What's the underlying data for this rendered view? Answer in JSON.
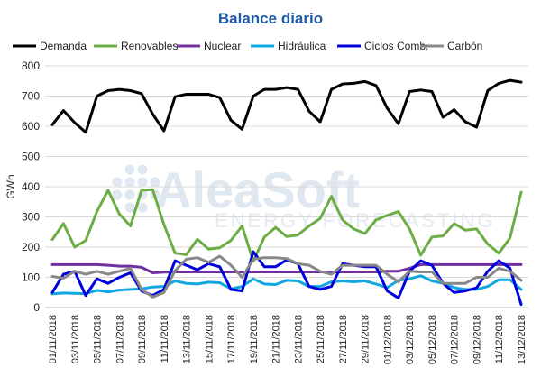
{
  "chart_data": {
    "type": "line",
    "title": "Balance diario",
    "ylabel": "GWh",
    "xlabel": "",
    "ylim": [
      0,
      800
    ],
    "yticks": [
      0,
      100,
      200,
      300,
      400,
      500,
      600,
      700,
      800
    ],
    "grid": true,
    "legend_position": "top",
    "watermark": {
      "line1": "AleaSoft",
      "line2": "ENERGY FORECASTING"
    },
    "x": [
      "01/11/2018",
      "02/11/2018",
      "03/11/2018",
      "04/11/2018",
      "05/11/2018",
      "06/11/2018",
      "07/11/2018",
      "08/11/2018",
      "09/11/2018",
      "10/11/2018",
      "11/11/2018",
      "12/11/2018",
      "13/11/2018",
      "14/11/2018",
      "15/11/2018",
      "16/11/2018",
      "17/11/2018",
      "18/11/2018",
      "19/11/2018",
      "20/11/2018",
      "21/11/2018",
      "22/11/2018",
      "23/11/2018",
      "24/11/2018",
      "25/11/2018",
      "26/11/2018",
      "27/11/2018",
      "28/11/2018",
      "29/11/2018",
      "30/11/2018",
      "01/12/2018",
      "02/12/2018",
      "03/12/2018",
      "04/12/2018",
      "05/12/2018",
      "06/12/2018",
      "07/12/2018",
      "08/12/2018",
      "09/12/2018",
      "10/12/2018",
      "11/12/2018",
      "12/12/2018",
      "13/12/2018"
    ],
    "xtick_labels": [
      "01/11/2018",
      "03/11/2018",
      "05/11/2018",
      "07/11/2018",
      "09/11/2018",
      "11/11/2018",
      "13/11/2018",
      "15/11/2018",
      "17/11/2018",
      "19/11/2018",
      "21/11/2018",
      "23/11/2018",
      "25/11/2018",
      "27/11/2018",
      "29/11/2018",
      "01/12/2018",
      "03/12/2018",
      "05/12/2018",
      "07/12/2018",
      "09/12/2018",
      "11/12/2018",
      "13/12/2018"
    ],
    "series": [
      {
        "name": "Demanda",
        "color": "#000000",
        "values": [
          605,
          652,
          612,
          580,
          700,
          718,
          722,
          718,
          708,
          640,
          585,
          698,
          706,
          706,
          706,
          695,
          620,
          590,
          700,
          722,
          722,
          728,
          722,
          650,
          615,
          722,
          740,
          742,
          748,
          735,
          660,
          608,
          715,
          720,
          715,
          630,
          655,
          615,
          597,
          718,
          742,
          752,
          746
        ]
      },
      {
        "name": "Renovables",
        "color": "#6cad45",
        "values": [
          225,
          278,
          200,
          222,
          318,
          388,
          310,
          270,
          388,
          390,
          275,
          180,
          175,
          226,
          193,
          198,
          222,
          270,
          153,
          233,
          265,
          235,
          240,
          270,
          295,
          368,
          290,
          260,
          245,
          290,
          305,
          318,
          260,
          173,
          233,
          237,
          278,
          256,
          260,
          210,
          180,
          230,
          382
        ]
      },
      {
        "name": "Nuclear",
        "color": "#7030a0",
        "values": [
          142,
          142,
          142,
          142,
          142,
          140,
          137,
          137,
          133,
          115,
          117,
          118,
          118,
          118,
          118,
          118,
          118,
          118,
          118,
          118,
          118,
          118,
          118,
          118,
          118,
          118,
          118,
          118,
          118,
          118,
          120,
          120,
          130,
          142,
          142,
          142,
          142,
          142,
          142,
          142,
          142,
          142,
          142
        ]
      },
      {
        "name": "Hidráulica",
        "color": "#12a7e0",
        "values": [
          45,
          48,
          47,
          46,
          57,
          52,
          58,
          60,
          62,
          68,
          70,
          88,
          80,
          78,
          84,
          82,
          62,
          70,
          95,
          78,
          76,
          90,
          88,
          70,
          70,
          85,
          88,
          85,
          88,
          78,
          66,
          90,
          95,
          105,
          88,
          80,
          66,
          60,
          60,
          70,
          92,
          92,
          60
        ]
      },
      {
        "name": "Ciclos Comb.",
        "color": "#0000dd",
        "values": [
          50,
          110,
          120,
          40,
          95,
          80,
          100,
          115,
          55,
          40,
          60,
          155,
          140,
          125,
          145,
          135,
          60,
          55,
          185,
          135,
          135,
          158,
          145,
          70,
          60,
          70,
          145,
          140,
          135,
          135,
          55,
          32,
          120,
          155,
          140,
          80,
          50,
          55,
          65,
          120,
          155,
          130,
          10
        ]
      },
      {
        "name": "Carbón",
        "color": "#888888",
        "values": [
          103,
          97,
          120,
          110,
          120,
          110,
          120,
          130,
          60,
          35,
          50,
          122,
          160,
          165,
          150,
          170,
          140,
          100,
          160,
          165,
          165,
          162,
          145,
          140,
          120,
          110,
          140,
          140,
          140,
          140,
          110,
          85,
          120,
          118,
          118,
          80,
          80,
          80,
          100,
          100,
          130,
          120,
          90
        ]
      }
    ]
  }
}
